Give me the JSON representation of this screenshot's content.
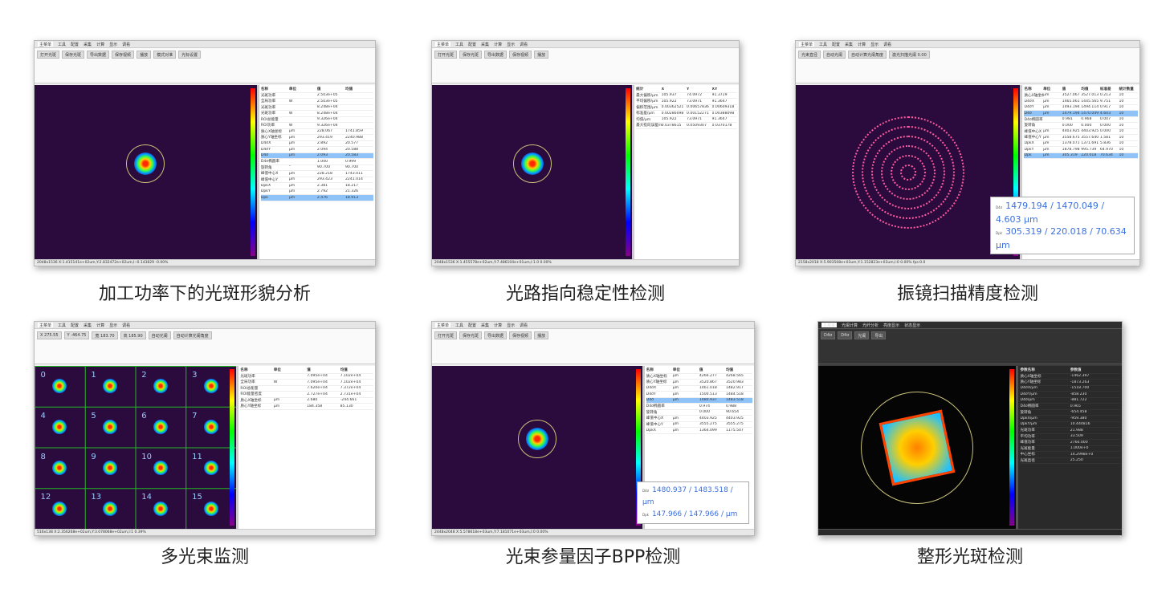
{
  "panels": [
    {
      "id": "p1",
      "caption": "加工功率下的光斑形貌分析",
      "tabs": [
        "主菜单",
        "工具",
        "配置",
        "采集",
        "计算",
        "显示",
        "调看"
      ],
      "ribbon": [
        "打开光斑",
        "保存光斑",
        "导出数据",
        "保存视频",
        "播放",
        "模式对准",
        "光标设置"
      ],
      "table_header": [
        "名称",
        "单位",
        "值",
        "均值"
      ],
      "rows": [
        [
          "光斑功率",
          "",
          "2.503e+05",
          ""
        ],
        [
          "全局功率",
          "W",
          "2.503e+05",
          ""
        ],
        [
          "光斑功率",
          "",
          "8.248e+04",
          ""
        ],
        [
          "光斑功率",
          "W",
          "8.248e+04",
          ""
        ],
        [
          "ROI总能量",
          "",
          "9.326e+04",
          ""
        ],
        [
          "ROI功率",
          "W",
          "9.326e+04",
          ""
        ],
        [
          "质心X轴坐标",
          "μm",
          "228.067",
          "1741.859"
        ],
        [
          "质心Y轴坐标",
          "μm",
          "293.419",
          "2240.988"
        ],
        [
          "D4σX",
          "μm",
          "2.892",
          "20.577"
        ],
        [
          "D4σY",
          "μm",
          "2.094",
          "20.588"
        ],
        [
          "D4σ",
          "μm",
          "2.093",
          "20.583"
        ],
        [
          "D4σ椭圆率",
          "",
          "1.000",
          "0.999"
        ],
        [
          "旋转角",
          "°",
          "90.700",
          "90.700"
        ],
        [
          "峰值中心X",
          "μm",
          "228.218",
          "1743.011"
        ],
        [
          "峰值中心Y",
          "μm",
          "293.423",
          "2241.014"
        ],
        [
          "DpkX",
          "μm",
          "2.381",
          "18.217"
        ],
        [
          "DpkY",
          "μm",
          "2.792",
          "21.326"
        ],
        [
          "Dpk",
          "μm",
          "2.476",
          "18.913"
        ]
      ],
      "selected": [
        10,
        17
      ],
      "status": "2048x1536   X:1.415141e+02um,Y:2.832472e+02um,I:-0.143829   -0.00%"
    },
    {
      "id": "p2",
      "caption": "光路指向稳定性检测",
      "tabs": [
        "主菜单",
        "工具",
        "配置",
        "采集",
        "计算",
        "显示",
        "调看"
      ],
      "ribbon": [
        "打开光斑",
        "保存光斑",
        "导出数据",
        "保存视频",
        "播放"
      ],
      "table_header": [
        "统计",
        "X",
        "Y",
        "XY"
      ],
      "rows": [
        [
          "最大偏移/μm",
          "105.937",
          "74.0972",
          "91.3719"
        ],
        [
          "平均偏移/μm",
          "105.922",
          "73.0971",
          "91.3647"
        ],
        [
          "偏移范围/μm",
          "0.00362521",
          "0.00657836",
          "0.00609318"
        ],
        [
          "标准差/μm",
          "0.00286098",
          "0.00152271",
          "0.00388098"
        ],
        [
          "均值/μm",
          "105.922",
          "73.0971",
          "91.3647"
        ],
        [
          "最大指向误差/mrad",
          "0.0378615",
          "0.0509307",
          "0.0370178"
        ]
      ],
      "selected": [],
      "status": "2048x1536   X:1.455578e+02um,Y:7.486104e+01um,I:1.0   0.00%"
    },
    {
      "id": "p3",
      "caption": "振镜扫描精度检测",
      "tabs": [
        "主菜单",
        "工具",
        "配置",
        "采集",
        "计算",
        "显示",
        "调看"
      ],
      "ribbon": [
        "光束直径",
        "自动光阑",
        "自动计算光阑角度",
        "激光扫描光阑 0.00"
      ],
      "table_header": [
        "名称",
        "单位",
        "值",
        "均值",
        "标准差",
        "统计数量"
      ],
      "rows": [
        [
          "质心X轴坐标",
          "μm",
          "3527.067",
          "3527.013",
          "0.213",
          "10"
        ],
        [
          "D4σX",
          "μm",
          "1465.061",
          "1445.565",
          "9.751",
          "10"
        ],
        [
          "D4σY",
          "μm",
          "1493.194",
          "1494.114",
          "0.917",
          "10"
        ],
        [
          "D4σ",
          "μm",
          "1479.194",
          "1470.049",
          "4.603",
          "10"
        ],
        [
          "D4σ椭圆率",
          "",
          "0.981",
          "0.968",
          "0.007",
          "10"
        ],
        [
          "旋转角",
          "",
          "0.000",
          "0.000",
          "0.000",
          "10"
        ],
        [
          "峰值中心X",
          "μm",
          "4403.925",
          "4403.925",
          "0.000",
          "10"
        ],
        [
          "峰值中心Y",
          "μm",
          "3558.675",
          "3557.640",
          "1.581",
          "10"
        ],
        [
          "DpkX",
          "μm",
          "1378.071",
          "1371.691",
          "5.836",
          "10"
        ],
        [
          "DpkY",
          "μm",
          "1878.798",
          "995.739",
          "64.970",
          "10"
        ],
        [
          "Dpk",
          "μm",
          "305.319",
          "220.018",
          "70.634",
          "10"
        ]
      ],
      "selected": [
        3,
        10
      ],
      "readout": {
        "label1": "D4σ",
        "line1": "1479.194 / 1470.049 / 4.603 μm",
        "label2": "Dpk",
        "line2": "305.319 / 220.018 / 70.634 μm"
      },
      "status": "2158x2018   X:5.903508e+03um,Y:1.152823e+03um,I:0   0.00%   fps:0.0"
    },
    {
      "id": "p4",
      "caption": "多光束监测",
      "tabs": [
        "主菜单",
        "工具",
        "配置",
        "采集",
        "计算",
        "显示",
        "调看"
      ],
      "ribbon": [
        "X 275.55",
        "Y -464.75",
        "宽 183.70",
        "高 185.90",
        "自动光阑",
        "自动计算光阑角度"
      ],
      "table_header": [
        "名称",
        "单位",
        "值",
        "均值"
      ],
      "rows": [
        [
          "光斑功率",
          "",
          "7.095e+04",
          "7.102e+04"
        ],
        [
          "全局功率",
          "W",
          "7.095e+04",
          "7.102e+04"
        ],
        [
          "ROI总能量",
          "",
          "7.620e+04",
          "7.372e+04"
        ],
        [
          "ROI能量密度",
          "",
          "2.727e+04",
          "2.731e+04"
        ],
        [
          "质心X轴坐标",
          "μm",
          "2.680",
          "-244.661"
        ],
        [
          "质心Y轴坐标",
          "μm",
          "184.358",
          "85.130"
        ]
      ],
      "selected": [],
      "labels": [
        "0",
        "4",
        "8",
        "12",
        "1",
        "5",
        "9",
        "13",
        "2",
        "6",
        "10",
        "14",
        "3",
        "7",
        "11",
        "15"
      ],
      "status": "516x138   X:2.356268e+02um,Y:3.078068e+02um,I:1   0.39%"
    },
    {
      "id": "p5",
      "caption": "光束参量因子BPP检测",
      "tabs": [
        "主菜单",
        "工具",
        "配置",
        "采集",
        "计算",
        "显示",
        "调看"
      ],
      "ribbon": [
        "打开光斑",
        "保存光斑",
        "导出数据",
        "保存视频",
        "播放"
      ],
      "table_header": [
        "名称",
        "单位",
        "值",
        "均值"
      ],
      "rows": [
        [
          "质心X轴坐标",
          "μm",
          "4266.277",
          "4268.565"
        ],
        [
          "质心Y轴坐标",
          "μm",
          "3520.867",
          "3520.983"
        ],
        [
          "D4σX",
          "μm",
          "1461.018",
          "1482.917"
        ],
        [
          "D4σY",
          "μm",
          "1500.513",
          "1484.518"
        ],
        [
          "D4σ",
          "μm",
          "1480.937",
          "1483.518"
        ],
        [
          "D4σ椭圆率",
          "",
          "0.974",
          "0.988"
        ],
        [
          "旋转角",
          "",
          "0.000",
          "90.654"
        ],
        [
          "峰值中心X",
          "μm",
          "4403.925",
          "4403.925"
        ],
        [
          "峰值中心Y",
          "μm",
          "3555.275",
          "3555.275"
        ],
        [
          "DpkX",
          "μm",
          "1364.099",
          "1175.507"
        ]
      ],
      "selected": [
        4
      ],
      "readout": {
        "label1": "D4σ",
        "line1": "1480.937 / 1483.518 / μm",
        "label2": "Dpk",
        "line2": "147.966 / 147.966 / μm"
      },
      "status": "2448x2048   X:5.578618e+03um,Y:7.181071e+03um,I:0   0.00%"
    },
    {
      "id": "p6",
      "caption": "整形光斑检测",
      "tabs": [
        "主菜单",
        "光阑计算",
        "光纤分析",
        "亮度显示",
        "状态显示"
      ],
      "ribbon": [
        "D4σ",
        "D4σ",
        "光阑",
        "导出"
      ],
      "table_header": [
        "参数名称",
        "参数值"
      ],
      "rows": [
        [
          "质心X轴坐标",
          "-1462.397"
        ],
        [
          "质心Y轴坐标",
          "-1873.263"
        ],
        [
          "D4σX/μm",
          "-1518.700"
        ],
        [
          "D4σY/μm",
          "-858.230"
        ],
        [
          "D4σ/μm",
          "-881.722"
        ],
        [
          "D4σ椭圆率",
          "0.965"
        ],
        [
          "旋转角",
          "-654.458"
        ],
        [
          "DpkX/μm",
          "-959.380"
        ],
        [
          "DpkY/μm",
          "10.444816"
        ],
        [
          "光斑功率",
          "21.988"
        ],
        [
          "平均功率",
          "33.509"
        ],
        [
          "峰值功率",
          "2760.000"
        ],
        [
          "光斑能量",
          "1.000e+0"
        ],
        [
          "中心坐标",
          "14.2998e+0"
        ],
        [
          "光斑直径",
          "25.250"
        ]
      ],
      "selected": [],
      "status": ""
    }
  ],
  "colors": {
    "selected_row": "#8fc3f7",
    "readout_text": "#3a6fe0",
    "image_bg": "#2b0b3d"
  }
}
